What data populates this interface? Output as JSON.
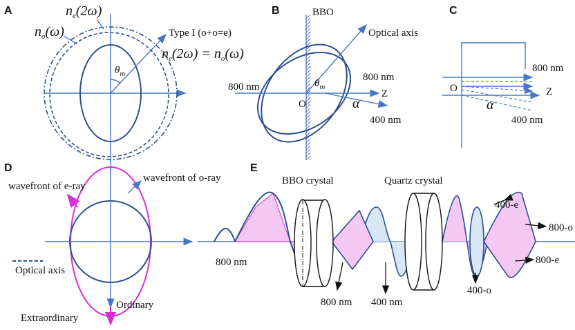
{
  "panels": {
    "a": {
      "label": "A",
      "ne": [
        {
          "text": "n"
        },
        {
          "sub": "e"
        },
        {
          "text": "(2ω)"
        }
      ],
      "no": [
        {
          "text": "n"
        },
        {
          "sub": "o"
        },
        {
          "text": "(ω)"
        }
      ],
      "type": "Type I (o+o=e)",
      "equation": [
        {
          "text": "n"
        },
        {
          "sub": "e"
        },
        {
          "text": "(2ω) = n"
        },
        {
          "sub": "o"
        },
        {
          "text": "(ω)"
        }
      ],
      "theta": [
        {
          "text": "θ"
        },
        {
          "sub": "m"
        }
      ]
    },
    "b": {
      "label": "B",
      "crystal": "BBO",
      "axis": "Optical axis",
      "input": "800 nm",
      "output": "800 nm",
      "z": "Z",
      "origin": "O",
      "alpha": "α",
      "shg": "400 nm",
      "theta": [
        {
          "text": "θ"
        },
        {
          "sub": "m"
        }
      ]
    },
    "c": {
      "label": "C",
      "output": "800 nm",
      "origin": "O",
      "z": "Z",
      "alpha": "α",
      "shg": "400 nm"
    },
    "d": {
      "label": "D",
      "e_ray": "wavefront of e-ray",
      "o_ray": "wavefront of o-ray",
      "legend": "Optical axis",
      "ordinary": "Ordinary",
      "extraordinary": "Extraordinary"
    },
    "e": {
      "label": "E",
      "bbo": "BBO crystal",
      "quartz": "Quartz crystal",
      "input": "800 nm",
      "fund": "800 nm",
      "shg": "400 nm",
      "e400": "400-e",
      "o800": "800-o",
      "o400": "400-o",
      "e800": "800-e"
    }
  }
}
